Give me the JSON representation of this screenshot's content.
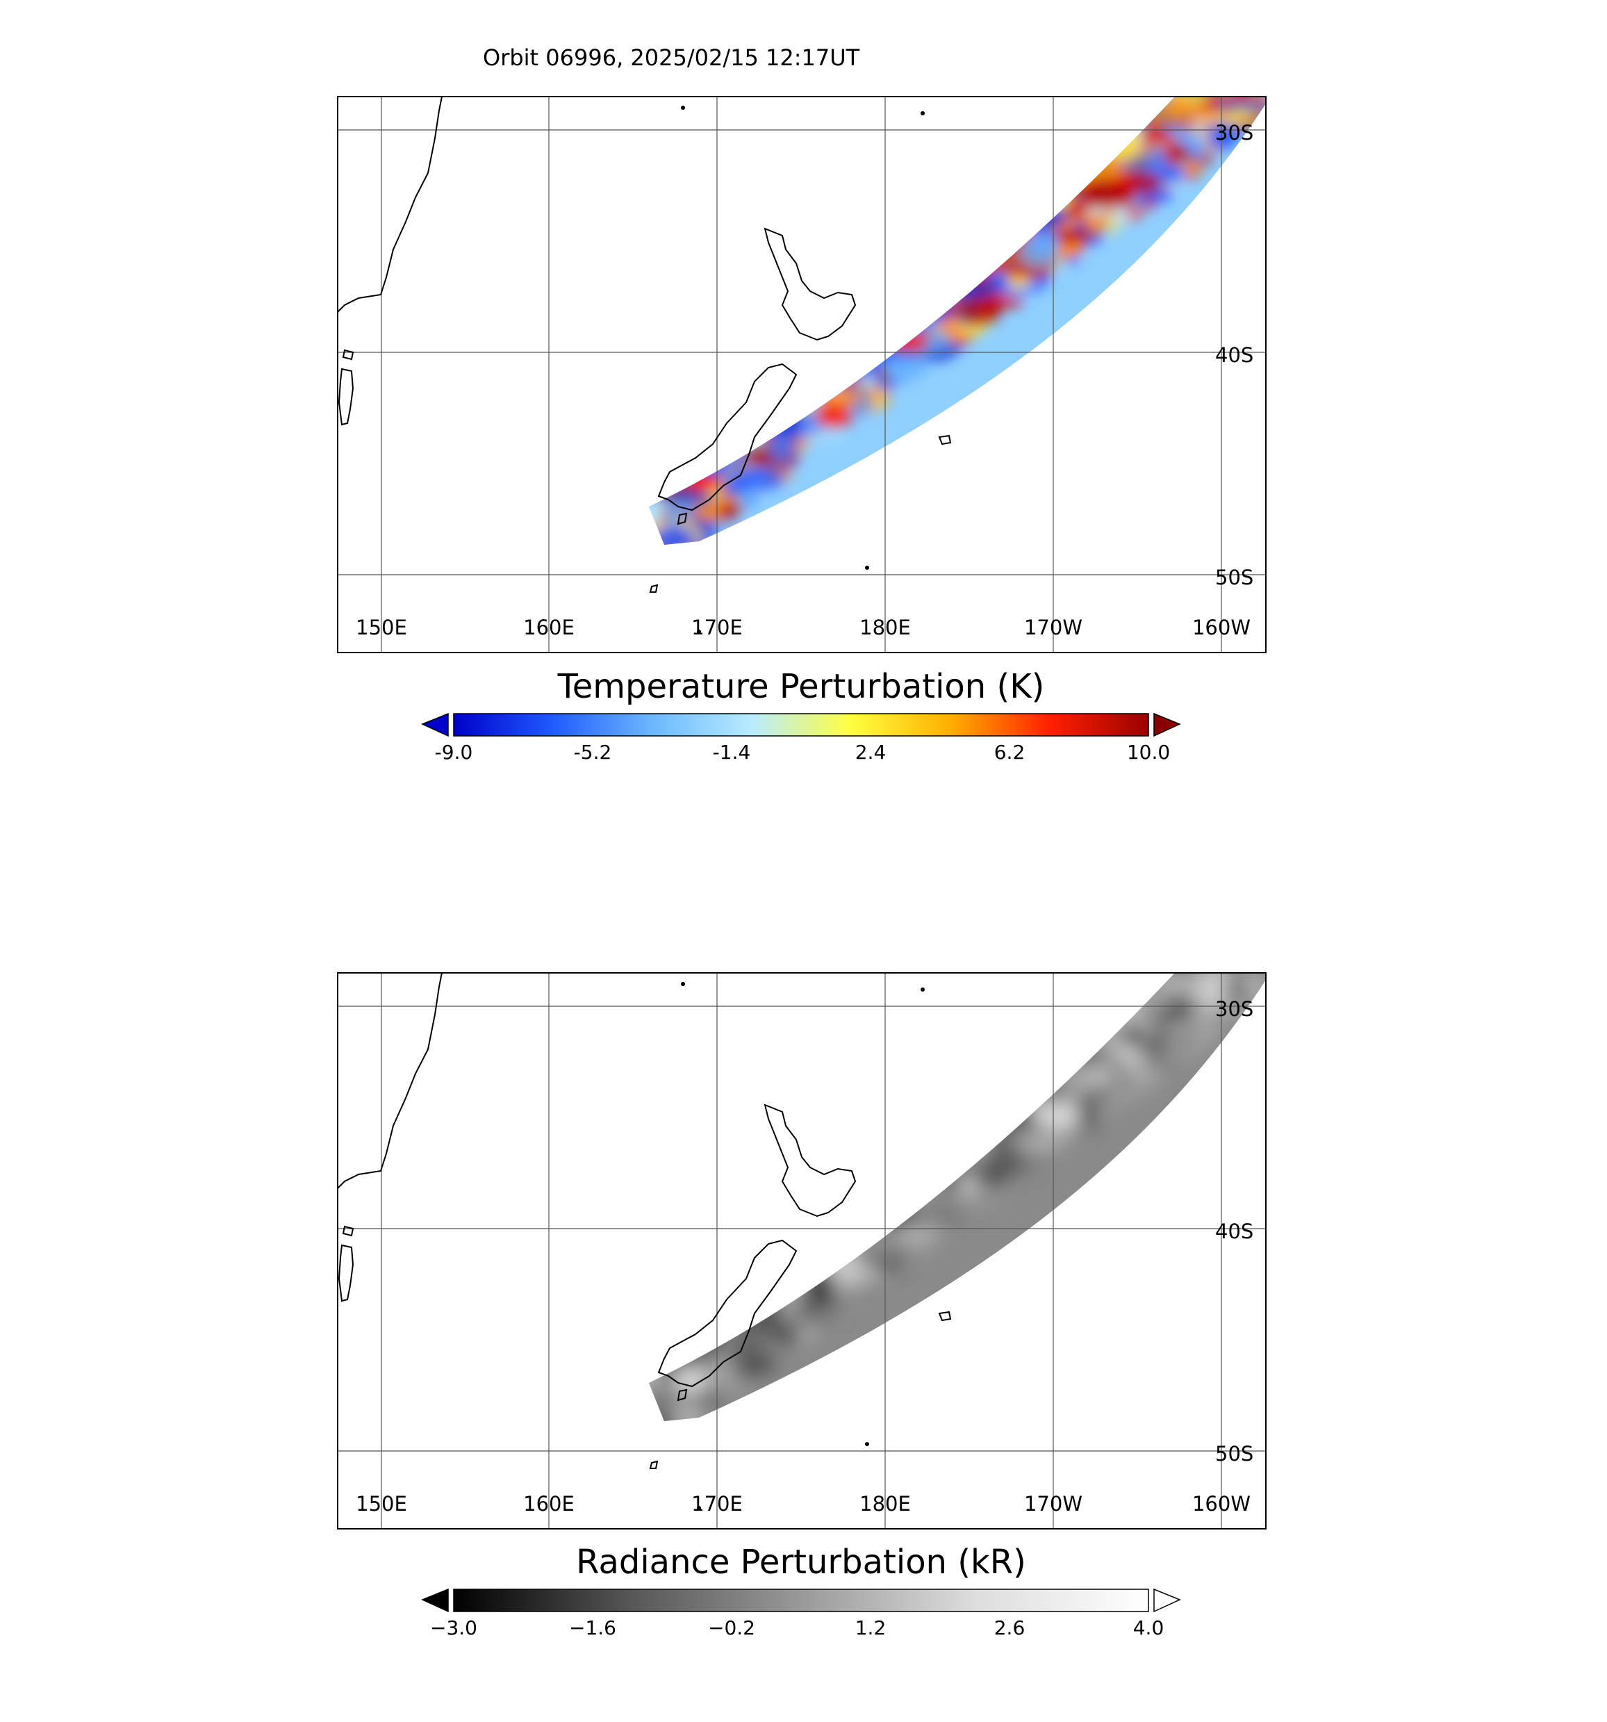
{
  "header": {
    "title": "Orbit 06996, 2025/02/15 12:17UT"
  },
  "map_axes": {
    "lon_labels": [
      "150E",
      "160E",
      "170E",
      "180E",
      "170W",
      "160W"
    ],
    "lat_labels": [
      "30S",
      "40S",
      "50S"
    ]
  },
  "panels": [
    {
      "id": "temperature",
      "colorbar_title": "Temperature Perturbation (K)",
      "colorbar_ticks": [
        "-9.0",
        "-5.2",
        "-1.4",
        "2.4",
        "6.2",
        "10.0"
      ],
      "colormap": [
        "#0000c8",
        "#1e5cff",
        "#6bb8ff",
        "#b8ecff",
        "#ffff40",
        "#ffb000",
        "#ff2000",
        "#9a0000"
      ],
      "under_color": "#0000c8",
      "over_color": "#8a0000"
    },
    {
      "id": "radiance",
      "colorbar_title": "Radiance Perturbation (kR)",
      "colorbar_ticks": [
        "−3.0",
        "−1.6",
        "−0.2",
        "1.2",
        "2.6",
        "4.0"
      ],
      "colormap": [
        "#000000",
        "#555555",
        "#999999",
        "#dddddd",
        "#ffffff"
      ],
      "under_color": "#000000",
      "over_color": "#ffffff"
    }
  ]
}
